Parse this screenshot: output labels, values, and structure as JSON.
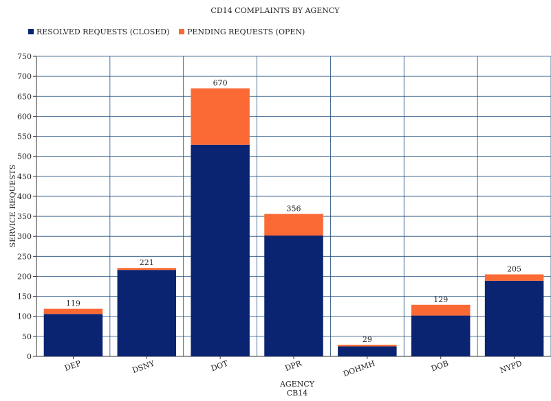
{
  "chart_data": {
    "type": "bar",
    "stacked": true,
    "title": "CD14 COMPLAINTS BY AGENCY",
    "xlabel": "AGENCY",
    "xsublabel": "CB14",
    "ylabel": "SERVICE REQUESTS",
    "ylim": [
      0,
      750
    ],
    "ytick_step": 50,
    "grid": true,
    "legend_position": "top-left",
    "categories": [
      "DEP",
      "DSNY",
      "DOT",
      "DPR",
      "DOHMH",
      "DOB",
      "NYPD"
    ],
    "series": [
      {
        "name": "RESOLVED REQUESTS (CLOSED)",
        "color": "#0a2472",
        "values": [
          106,
          216,
          529,
          302,
          25,
          102,
          189
        ]
      },
      {
        "name": "PENDING REQUESTS (OPEN)",
        "color": "#fb6a35",
        "values": [
          13,
          5,
          141,
          54,
          4,
          27,
          16
        ]
      }
    ],
    "totals": [
      119,
      221,
      670,
      356,
      29,
      129,
      205
    ],
    "colors": {
      "grid": "#1c4a7a",
      "axis": "#333333"
    }
  }
}
